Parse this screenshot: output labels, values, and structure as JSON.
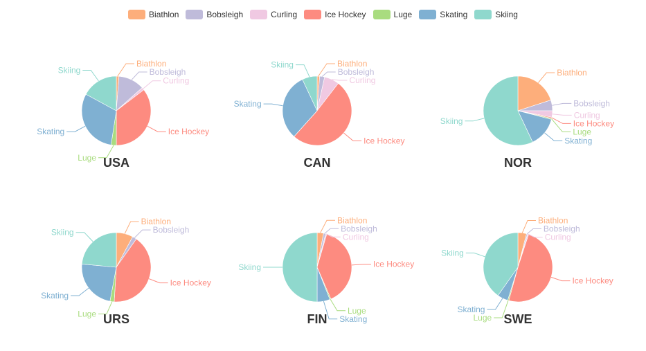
{
  "legend_swatch_colors": {
    "Biathlon": "#fdae7b",
    "Bobsleigh": "#bfbbda",
    "Curling": "#f0c9e2",
    "Ice Hockey": "#fd8b80",
    "Luge": "#a9dc7f",
    "Skating": "#7fb0d2",
    "Skiing": "#8fd8cd"
  },
  "chart_data": {
    "type": "pie",
    "legend_position": "top-center",
    "categories": [
      "Biathlon",
      "Bobsleigh",
      "Curling",
      "Ice Hockey",
      "Luge",
      "Skating",
      "Skiing"
    ],
    "colors": [
      "#fdae7b",
      "#bfbbda",
      "#f0c9e2",
      "#fd8b80",
      "#a9dc7f",
      "#7fb0d2",
      "#8fd8cd"
    ],
    "charts": [
      {
        "title": "USA",
        "values": [
          1,
          10,
          1,
          29,
          2,
          25,
          14
        ]
      },
      {
        "title": "CAN",
        "values": [
          1,
          2,
          6,
          44,
          0,
          27,
          6
        ]
      },
      {
        "title": "NOR",
        "values": [
          20,
          5,
          3,
          0.5,
          0.5,
          14,
          57
        ]
      },
      {
        "title": "URS",
        "values": [
          8,
          2,
          0,
          42,
          2,
          24,
          24
        ]
      },
      {
        "title": "FIN",
        "values": [
          3,
          1,
          0.5,
          39,
          0.5,
          6,
          50
        ]
      },
      {
        "title": "SWE",
        "values": [
          4,
          0.5,
          0.5,
          49,
          0.5,
          5,
          40
        ]
      }
    ]
  }
}
